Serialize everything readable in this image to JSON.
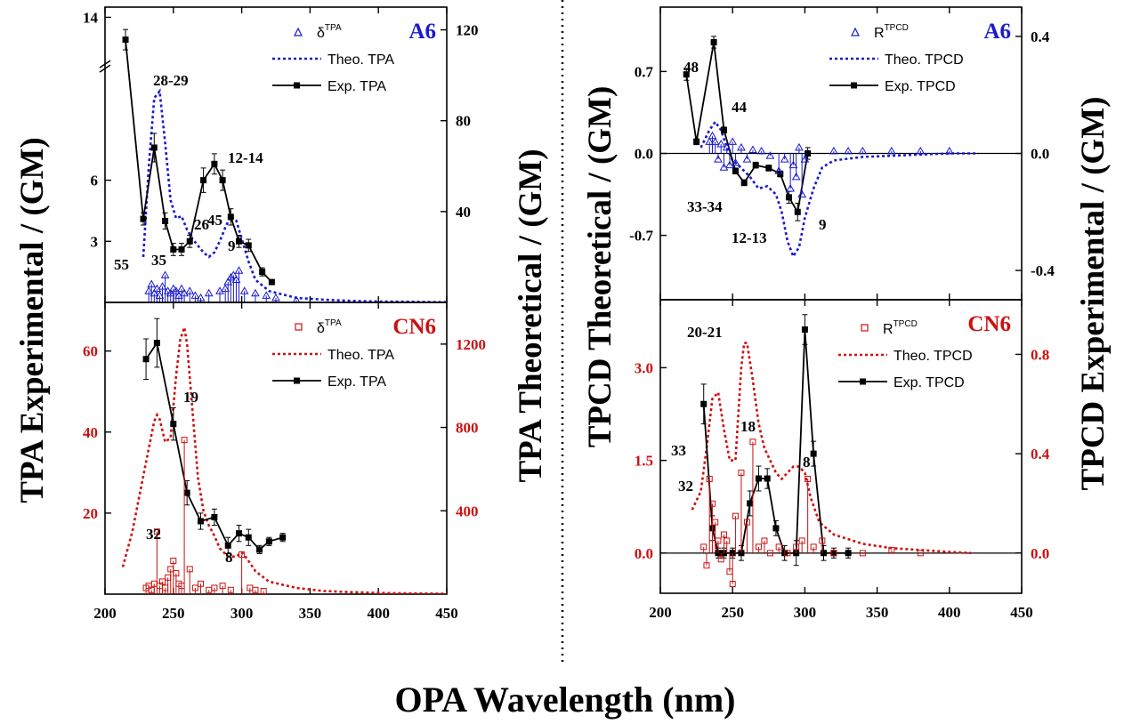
{
  "figure": {
    "x_axis_title": "OPA Wavelength (nm)",
    "left_axis_title": "TPA Experimental / (GM)",
    "center_left_axis_title": "TPA Theoretical / (GM)",
    "center_right_axis_title": "TPCD Theoretical / (GM)",
    "right_axis_title": "TPCD Experimental / (GM)"
  },
  "colors": {
    "a6": "#1a1acc",
    "cn6": "#cc1111",
    "exp": "#000000"
  },
  "chart_data": [
    {
      "id": "tpa_a6",
      "type": "line",
      "tag": "A6",
      "xlim": [
        200,
        450
      ],
      "xticks": [
        "200",
        "250",
        "300",
        "350",
        "400",
        "450"
      ],
      "y_left": {
        "ylim": [
          0,
          14.5
        ],
        "ticks": [
          3,
          6,
          14
        ],
        "tick_labels": [
          "3",
          "6",
          "14"
        ],
        "axis_break": true
      },
      "y_right": {
        "ylim": [
          0,
          130
        ],
        "ticks": [
          40,
          80,
          120
        ],
        "tick_labels": [
          "40",
          "80",
          "120"
        ]
      },
      "legend": [
        "δTPA",
        "Theo. TPA",
        "Exp. TPA"
      ],
      "series": [
        {
          "name": "Theo. TPA",
          "axis": "right",
          "style": "dotted",
          "x": [
            228,
            232,
            236,
            240,
            244,
            248,
            252,
            256,
            260,
            264,
            268,
            272,
            276,
            280,
            284,
            288,
            292,
            296,
            300,
            305,
            310,
            320,
            340,
            360,
            380,
            400,
            420,
            450
          ],
          "y": [
            20,
            60,
            90,
            93,
            70,
            45,
            37,
            38,
            32,
            28,
            25,
            22,
            20,
            22,
            27,
            33,
            38,
            36,
            28,
            18,
            10,
            5,
            2,
            1.2,
            0.7,
            0.4,
            0.3,
            0.1
          ]
        },
        {
          "name": "Exp. TPA",
          "axis": "left",
          "style": "solid",
          "x": [
            215,
            228,
            236,
            244,
            250,
            256,
            262,
            272,
            280,
            286,
            292,
            298,
            305,
            315,
            322
          ],
          "y": [
            12.9,
            4.1,
            7.6,
            4.0,
            2.6,
            2.6,
            3.0,
            6.0,
            6.8,
            6.0,
            4.2,
            3.0,
            2.8,
            1.5,
            1.0
          ],
          "err": [
            0.5,
            0.3,
            0.7,
            0.4,
            0.3,
            0.3,
            0.3,
            0.6,
            0.5,
            0.5,
            0.4,
            0.3,
            0.3,
            0.2,
            0.1
          ]
        },
        {
          "name": "δTPA",
          "axis": "right",
          "style": "sticks",
          "x": [
            232,
            234,
            236,
            238,
            240,
            242,
            244,
            246,
            248,
            250,
            252,
            254,
            256,
            258,
            262,
            266,
            270,
            276,
            284,
            288,
            290,
            292,
            294,
            296,
            298,
            302,
            310,
            318,
            325,
            340
          ],
          "y": [
            5,
            8,
            4,
            6,
            3,
            7,
            12,
            5,
            4,
            6,
            5,
            3,
            6,
            4,
            5,
            3,
            2,
            4,
            5,
            6,
            9,
            11,
            12,
            10,
            14,
            5,
            4,
            3,
            2,
            1
          ]
        }
      ],
      "annotations": [
        "45",
        "55",
        "35",
        "28-29",
        "26",
        "12-14",
        "9"
      ]
    },
    {
      "id": "tpa_cn6",
      "type": "line",
      "tag": "CN6",
      "xlim": [
        200,
        450
      ],
      "xticks": [
        "200",
        "250",
        "300",
        "350",
        "400",
        "450"
      ],
      "y_left": {
        "ylim": [
          0,
          72
        ],
        "ticks": [
          20,
          40,
          60
        ],
        "tick_labels": [
          "20",
          "40",
          "60"
        ]
      },
      "y_right": {
        "ylim": [
          0,
          1400
        ],
        "ticks": [
          400,
          800,
          1200
        ],
        "tick_labels": [
          "400",
          "800",
          "1200"
        ]
      },
      "legend": [
        "δTPA",
        "Theo. TPA",
        "Exp. TPA"
      ],
      "series": [
        {
          "name": "Theo. TPA",
          "axis": "right",
          "style": "dotted",
          "x": [
            213,
            220,
            226,
            232,
            236,
            238,
            240,
            244,
            248,
            252,
            255,
            258,
            260,
            264,
            268,
            272,
            276,
            280,
            284,
            290,
            296,
            300,
            304,
            310,
            320,
            340,
            360,
            380,
            400,
            420,
            450
          ],
          "y": [
            130,
            300,
            500,
            700,
            830,
            860,
            840,
            730,
            750,
            1050,
            1220,
            1280,
            1200,
            880,
            560,
            400,
            330,
            280,
            220,
            180,
            180,
            200,
            170,
            110,
            60,
            30,
            15,
            10,
            6,
            4,
            2
          ]
        },
        {
          "name": "Exp. TPA",
          "axis": "left",
          "style": "solid",
          "x": [
            230,
            238,
            250,
            260,
            270,
            280,
            290,
            298,
            305,
            313,
            320,
            330
          ],
          "y": [
            58,
            62,
            42,
            25,
            18,
            19,
            12,
            15,
            14,
            11,
            13,
            14
          ],
          "err": [
            5,
            6,
            4,
            3,
            2,
            2,
            2,
            2,
            2,
            1,
            1,
            1
          ]
        },
        {
          "name": "δTPA",
          "axis": "right",
          "style": "sticks",
          "x": [
            230,
            232,
            234,
            236,
            238,
            240,
            242,
            244,
            246,
            248,
            250,
            252,
            254,
            256,
            258,
            262,
            266,
            270,
            276,
            280,
            286,
            292,
            300,
            306,
            310,
            316
          ],
          "y": [
            30,
            40,
            20,
            50,
            300,
            40,
            60,
            30,
            80,
            120,
            160,
            100,
            50,
            40,
            740,
            120,
            30,
            50,
            20,
            30,
            40,
            20,
            190,
            30,
            20,
            15
          ]
        }
      ],
      "annotations": [
        "19",
        "32",
        "8"
      ]
    },
    {
      "id": "tpcd_a6",
      "type": "line",
      "tag": "A6",
      "xlim": [
        200,
        450
      ],
      "xticks": [
        "200",
        "250",
        "300",
        "350",
        "400",
        "450"
      ],
      "y_left": {
        "ylim": [
          -1.25,
          1.25
        ],
        "ticks": [
          -0.7,
          0.0,
          0.7
        ],
        "tick_labels": [
          "-0.7",
          "0.0",
          "0.7"
        ]
      },
      "y_right": {
        "ylim": [
          -0.5,
          0.5
        ],
        "ticks": [
          -0.4,
          0.0,
          0.4
        ],
        "tick_labels": [
          "-0.4",
          "0.0",
          "0.4"
        ]
      },
      "legend": [
        "RTPCD",
        "Theo. TPCD",
        "Exp. TPCD"
      ],
      "series": [
        {
          "name": "Theo. TPCD",
          "axis": "left",
          "style": "dotted",
          "x": [
            228,
            234,
            238,
            242,
            246,
            250,
            254,
            258,
            262,
            268,
            274,
            280,
            284,
            288,
            292,
            296,
            300,
            306,
            312,
            320,
            340,
            360,
            380,
            400,
            420
          ],
          "y": [
            0.05,
            0.2,
            0.27,
            0.2,
            0.05,
            -0.06,
            -0.1,
            -0.15,
            -0.2,
            -0.3,
            -0.28,
            -0.35,
            -0.5,
            -0.75,
            -0.88,
            -0.8,
            -0.55,
            -0.3,
            -0.12,
            -0.06,
            -0.03,
            -0.02,
            -0.01,
            0,
            0
          ]
        },
        {
          "name": "Exp. TPCD",
          "axis": "right",
          "style": "solid",
          "x": [
            218,
            225,
            237,
            244,
            252,
            258,
            266,
            275,
            283,
            289,
            295,
            302
          ],
          "y": [
            0.27,
            0.04,
            0.38,
            0.08,
            -0.06,
            -0.1,
            -0.04,
            -0.05,
            -0.07,
            -0.15,
            -0.2,
            0.0
          ],
          "err": [
            0.02,
            0.01,
            0.02,
            0.01,
            0.01,
            0.01,
            0.01,
            0.01,
            0.01,
            0.02,
            0.03,
            0.02
          ]
        },
        {
          "name": "RTPCD",
          "axis": "left",
          "style": "sticks",
          "x": [
            234,
            236,
            238,
            240,
            242,
            244,
            246,
            248,
            250,
            252,
            256,
            260,
            264,
            270,
            276,
            282,
            286,
            290,
            292,
            294,
            296,
            298,
            300,
            320,
            330,
            340,
            360,
            380,
            400
          ],
          "y": [
            0.1,
            0.15,
            0.1,
            -0.05,
            0.08,
            -0.12,
            0.05,
            -0.1,
            0.1,
            -0.08,
            0.05,
            -0.05,
            0.03,
            0.02,
            -0.02,
            -0.15,
            -0.05,
            -0.3,
            -0.1,
            -0.2,
            0.05,
            -0.35,
            -0.05,
            0.02,
            0.02,
            0.02,
            0.02,
            0.02,
            0.02
          ]
        }
      ],
      "annotations": [
        "48",
        "44",
        "33-34",
        "12-13",
        "9"
      ]
    },
    {
      "id": "tpcd_cn6",
      "type": "line",
      "tag": "CN6",
      "xlim": [
        200,
        450
      ],
      "xticks": [
        "200",
        "250",
        "300",
        "350",
        "400",
        "450"
      ],
      "y_left": {
        "ylim": [
          -0.65,
          4.1
        ],
        "ticks": [
          0.0,
          1.5,
          3.0
        ],
        "tick_labels": [
          "0.0",
          "1.5",
          "3.0"
        ]
      },
      "y_right": {
        "ylim": [
          -0.162,
          1.02
        ],
        "ticks": [
          0.0,
          0.4,
          0.8
        ],
        "tick_labels": [
          "0.0",
          "0.4",
          "0.8"
        ]
      },
      "legend": [
        "RTPCD",
        "Theo. TPCD",
        "Exp. TPCD"
      ],
      "series": [
        {
          "name": "Theo. TPCD",
          "axis": "left",
          "style": "dotted",
          "x": [
            222,
            228,
            232,
            236,
            240,
            244,
            248,
            252,
            256,
            258,
            260,
            264,
            268,
            272,
            276,
            280,
            284,
            288,
            292,
            296,
            300,
            304,
            310,
            320,
            340,
            360,
            380,
            400,
            415
          ],
          "y": [
            0.7,
            1.0,
            1.7,
            2.5,
            2.6,
            2.0,
            1.5,
            1.5,
            3.0,
            3.4,
            3.4,
            2.8,
            2.1,
            1.7,
            1.5,
            1.3,
            1.2,
            1.3,
            1.4,
            1.4,
            1.3,
            0.9,
            0.5,
            0.3,
            0.15,
            0.08,
            0.05,
            0.02,
            0.0
          ]
        },
        {
          "name": "Exp. TPCD",
          "axis": "right",
          "style": "solid",
          "x": [
            230,
            236,
            240,
            244,
            250,
            256,
            262,
            268,
            274,
            280,
            286,
            294,
            300,
            306,
            313,
            320,
            330
          ],
          "y": [
            0.6,
            0.1,
            0.0,
            0.0,
            0.0,
            0.0,
            0.2,
            0.3,
            0.3,
            0.1,
            0.0,
            0.0,
            0.9,
            0.4,
            0.0,
            0.0,
            0.0
          ],
          "err": [
            0.08,
            0.05,
            0.02,
            0.02,
            0.02,
            0.03,
            0.05,
            0.05,
            0.04,
            0.03,
            0.03,
            0.05,
            0.06,
            0.05,
            0.03,
            0.02,
            0.02
          ]
        },
        {
          "name": "RTPCD",
          "axis": "left",
          "style": "sticks",
          "x": [
            230,
            232,
            234,
            236,
            238,
            240,
            242,
            244,
            246,
            248,
            250,
            252,
            256,
            260,
            264,
            268,
            272,
            276,
            282,
            288,
            294,
            298,
            302,
            306,
            312,
            320,
            340,
            360,
            380
          ],
          "y": [
            0.1,
            -0.2,
            1.2,
            0.8,
            0.5,
            0.2,
            -0.1,
            0.3,
            0.2,
            -0.3,
            -0.5,
            0.6,
            1.3,
            0.5,
            1.8,
            0.1,
            0.2,
            0.0,
            0.1,
            0.0,
            0.1,
            0.2,
            1.2,
            0.1,
            0.2,
            0.0,
            0.0,
            0.05,
            0.0
          ]
        }
      ],
      "annotations": [
        "20-21",
        "33",
        "32",
        "18",
        "8"
      ]
    }
  ]
}
